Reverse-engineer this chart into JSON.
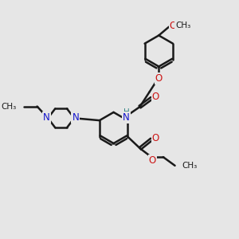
{
  "bg_color": "#e6e6e6",
  "bond_color": "#1a1a1a",
  "bond_width": 1.8,
  "dbo": 0.055,
  "N_color": "#1414cc",
  "O_color": "#cc1414",
  "H_color": "#3a8888",
  "C_color": "#1a1a1a",
  "font_size": 8.5,
  "fig_width": 3.0,
  "fig_height": 3.0,
  "xlim": [
    0,
    10
  ],
  "ylim": [
    0,
    10
  ]
}
